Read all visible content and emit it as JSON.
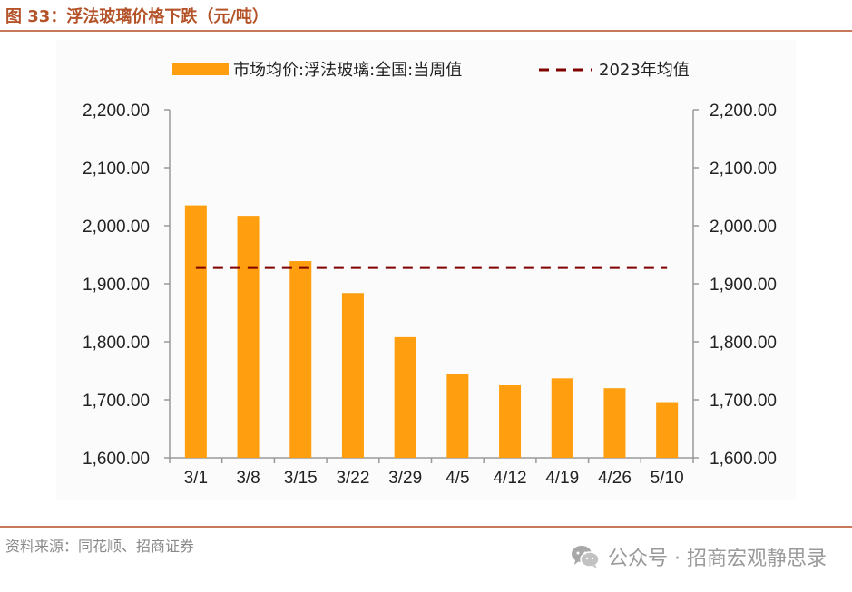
{
  "figure": {
    "title": "图 33：浮法玻璃价格下跌（元/吨）"
  },
  "source": "资料来源：同花顺、招商证券",
  "watermark": {
    "text": "公众号 · 招商宏观静思录",
    "icon": "wechat-icon"
  },
  "colors": {
    "bar": "#ff9f0f",
    "avg_line": "#800000",
    "rule": "#c8795a",
    "title": "#b4532a",
    "axis": "#999999",
    "text": "#222222"
  },
  "chart_data": {
    "type": "bar",
    "title": "",
    "xlabel": "",
    "ylabel": "",
    "categories": [
      "3/1",
      "3/8",
      "3/15",
      "3/22",
      "3/29",
      "4/5",
      "4/12",
      "4/19",
      "4/26",
      "5/10"
    ],
    "series": [
      {
        "name": "市场均价:浮法玻璃:全国:当周值",
        "kind": "bar",
        "values": [
          2035,
          2017,
          1939,
          1884,
          1808,
          1744,
          1725,
          1737,
          1720,
          1696
        ]
      },
      {
        "name": "2023年均值",
        "kind": "dashed-line",
        "values": [
          1928,
          1928,
          1928,
          1928,
          1928,
          1928,
          1928,
          1928,
          1928,
          1928
        ]
      }
    ],
    "ylim": [
      1600,
      2200
    ],
    "yticks": [
      1600,
      1700,
      1800,
      1900,
      2000,
      2100,
      2200
    ],
    "ytick_labels": [
      "1,600.00",
      "1,700.00",
      "1,800.00",
      "1,900.00",
      "2,000.00",
      "2,100.00",
      "2,200.00"
    ],
    "secondary_axis": true,
    "grid": false,
    "legend_position": "top"
  }
}
